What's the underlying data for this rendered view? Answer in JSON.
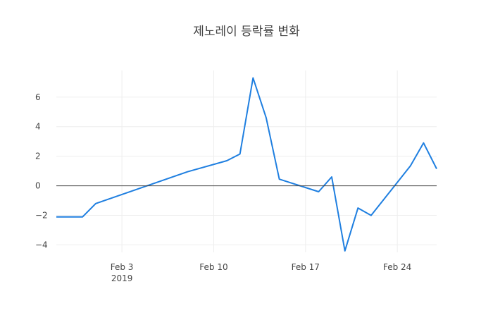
{
  "chart_data": {
    "type": "line",
    "title": "제노레이 등락률 변화",
    "xlabel": "",
    "ylabel": "",
    "x_ticks": [
      {
        "date": "2019-02-03",
        "label": "Feb 3",
        "sublabel": "2019"
      },
      {
        "date": "2019-02-10",
        "label": "Feb 10",
        "sublabel": ""
      },
      {
        "date": "2019-02-17",
        "label": "Feb 17",
        "sublabel": ""
      },
      {
        "date": "2019-02-24",
        "label": "Feb 24",
        "sublabel": ""
      }
    ],
    "y_ticks": [
      -4,
      -2,
      0,
      2,
      4,
      6
    ],
    "xlim": [
      "2019-01-29",
      "2019-02-27"
    ],
    "ylim": [
      -4.5,
      7.8
    ],
    "grid": true,
    "series": [
      {
        "color": "#1f7fe0",
        "x": [
          "2019-01-29",
          "2019-01-31",
          "2019-02-01",
          "2019-02-08",
          "2019-02-11",
          "2019-02-12",
          "2019-02-13",
          "2019-02-14",
          "2019-02-15",
          "2019-02-18",
          "2019-02-19",
          "2019-02-20",
          "2019-02-21",
          "2019-02-22",
          "2019-02-25",
          "2019-02-26",
          "2019-02-27"
        ],
        "y": [
          -2.1,
          -2.1,
          -1.2,
          0.95,
          1.7,
          2.15,
          7.3,
          4.6,
          0.45,
          -0.4,
          0.6,
          -4.4,
          -1.5,
          -2.0,
          1.35,
          2.9,
          1.15
        ]
      }
    ]
  }
}
